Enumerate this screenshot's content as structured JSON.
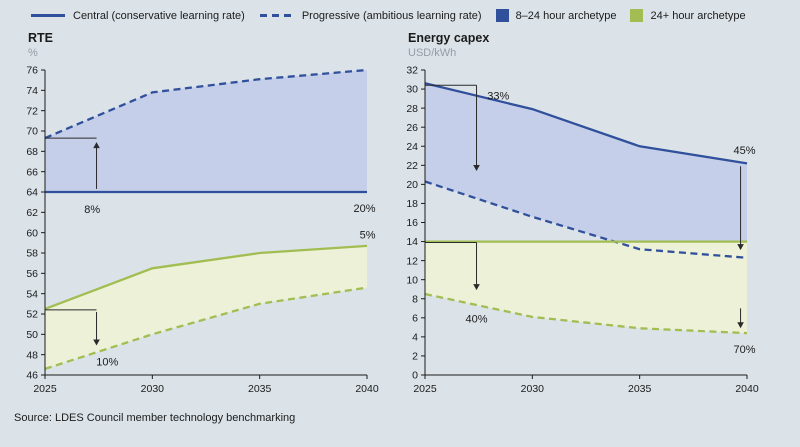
{
  "colors": {
    "background": "#dbe3e9",
    "blue": "#31509c",
    "blue_fill": "#c6cfe9",
    "green": "#a2bd52",
    "green_fill": "#edf1d8",
    "axis": "#1b1b1b",
    "text": "#1b1b1b",
    "annotation": "#2a2a2a",
    "subtitle": "#949da4"
  },
  "legend": {
    "items": [
      {
        "label": "Central (conservative learning rate)",
        "marker": "solid-line"
      },
      {
        "label": "Progressive (ambitious learning rate)",
        "marker": "dashed-line"
      },
      {
        "label": "8–24 hour archetype",
        "marker": "blue-square"
      },
      {
        "label": "24+ hour archetype",
        "marker": "green-square"
      }
    ]
  },
  "source": "Source: LDES Council member technology benchmarking",
  "chart_data": [
    {
      "type": "line",
      "title": "RTE",
      "ylabel": "%",
      "xlabel": "",
      "x": [
        2025,
        2030,
        2035,
        2040
      ],
      "x_range": [
        2025,
        2040
      ],
      "ylim": [
        46,
        76
      ],
      "ytick_step": 2,
      "grid": false,
      "legend_position": "top",
      "series": [
        {
          "name": "8–24 hour archetype – Central",
          "color": "blue",
          "style": "solid",
          "values": [
            64,
            64,
            64,
            64
          ]
        },
        {
          "name": "8–24 hour archetype – Progressive",
          "color": "blue",
          "style": "dashed",
          "values": [
            69.3,
            73.8,
            75.1,
            76
          ]
        },
        {
          "name": "24+ hour archetype – Central",
          "color": "green",
          "style": "solid",
          "values": [
            52.5,
            56.5,
            58,
            58.7
          ]
        },
        {
          "name": "24+ hour archetype – Progressive",
          "color": "green",
          "style": "dashed",
          "values": [
            46.6,
            50,
            53,
            54.6
          ]
        }
      ],
      "bands": [
        {
          "upper": 1,
          "lower": 0,
          "fill": "blue_fill"
        },
        {
          "upper": 2,
          "lower": 3,
          "fill": "green_fill"
        }
      ],
      "annotations": [
        {
          "text": "8%",
          "tx": 2027.2,
          "ty": 62.3,
          "anchor": "middle",
          "bracket": {
            "x1": 2025,
            "x2": 2027.4,
            "y": 69.3
          },
          "arrow": {
            "x": 2027.4,
            "from": 64.3,
            "to": 68.9
          }
        },
        {
          "text": "20%",
          "tx": 2040.4,
          "ty": 62.4,
          "anchor": "end"
        },
        {
          "text": "5%",
          "tx": 2040.4,
          "ty": 59.8,
          "anchor": "end"
        },
        {
          "text": "10%",
          "tx": 2027.9,
          "ty": 47.3,
          "anchor": "middle",
          "bracket": {
            "x1": 2025,
            "x2": 2027.4,
            "y": 52.4
          },
          "arrow": {
            "x": 2027.4,
            "from": 52.2,
            "to": 48.9
          }
        }
      ]
    },
    {
      "type": "line",
      "title": "Energy capex",
      "ylabel": "USD/kWh",
      "xlabel": "",
      "x": [
        2025,
        2030,
        2035,
        2040
      ],
      "x_range": [
        2025,
        2040
      ],
      "ylim": [
        0,
        32
      ],
      "ytick_step": 2,
      "grid": false,
      "legend_position": "top",
      "series": [
        {
          "name": "8–24 hour archetype – Central",
          "color": "blue",
          "style": "solid",
          "values": [
            30.6,
            27.9,
            24,
            22.2
          ]
        },
        {
          "name": "8–24 hour archetype – Progressive",
          "color": "blue",
          "style": "dashed",
          "values": [
            20.3,
            16.6,
            13.2,
            12.3
          ]
        },
        {
          "name": "24+ hour archetype – Central",
          "color": "green",
          "style": "solid",
          "values": [
            14,
            14,
            14,
            14
          ]
        },
        {
          "name": "24+ hour archetype – Progressive",
          "color": "green",
          "style": "dashed",
          "values": [
            8.5,
            6.1,
            4.9,
            4.4
          ]
        }
      ],
      "bands": [
        {
          "upper": 0,
          "lower": 1,
          "fill": "blue_fill"
        },
        {
          "upper": 2,
          "lower": 3,
          "fill": "green_fill"
        }
      ],
      "annotations": [
        {
          "text": "33%",
          "tx": 2027.9,
          "ty": 29.3,
          "anchor": "start",
          "bracket": {
            "x1": 2025,
            "x2": 2027.4,
            "y": 30.4
          },
          "arrow": {
            "x": 2027.4,
            "from": 30.4,
            "to": 21.4
          }
        },
        {
          "text": "45%",
          "tx": 2040.4,
          "ty": 23.6,
          "anchor": "end",
          "arrow": {
            "x": 2039.7,
            "from": 21.9,
            "to": 13.1
          }
        },
        {
          "text": "40%",
          "tx": 2027.4,
          "ty": 5.9,
          "anchor": "middle",
          "bracket": {
            "x1": 2025,
            "x2": 2027.4,
            "y": 13.9
          },
          "arrow": {
            "x": 2027.4,
            "from": 13.9,
            "to": 8.9
          }
        },
        {
          "text": "70%",
          "tx": 2040.4,
          "ty": 2.7,
          "anchor": "end",
          "arrow": {
            "x": 2039.7,
            "from": 7,
            "to": 4.9
          }
        }
      ]
    }
  ]
}
